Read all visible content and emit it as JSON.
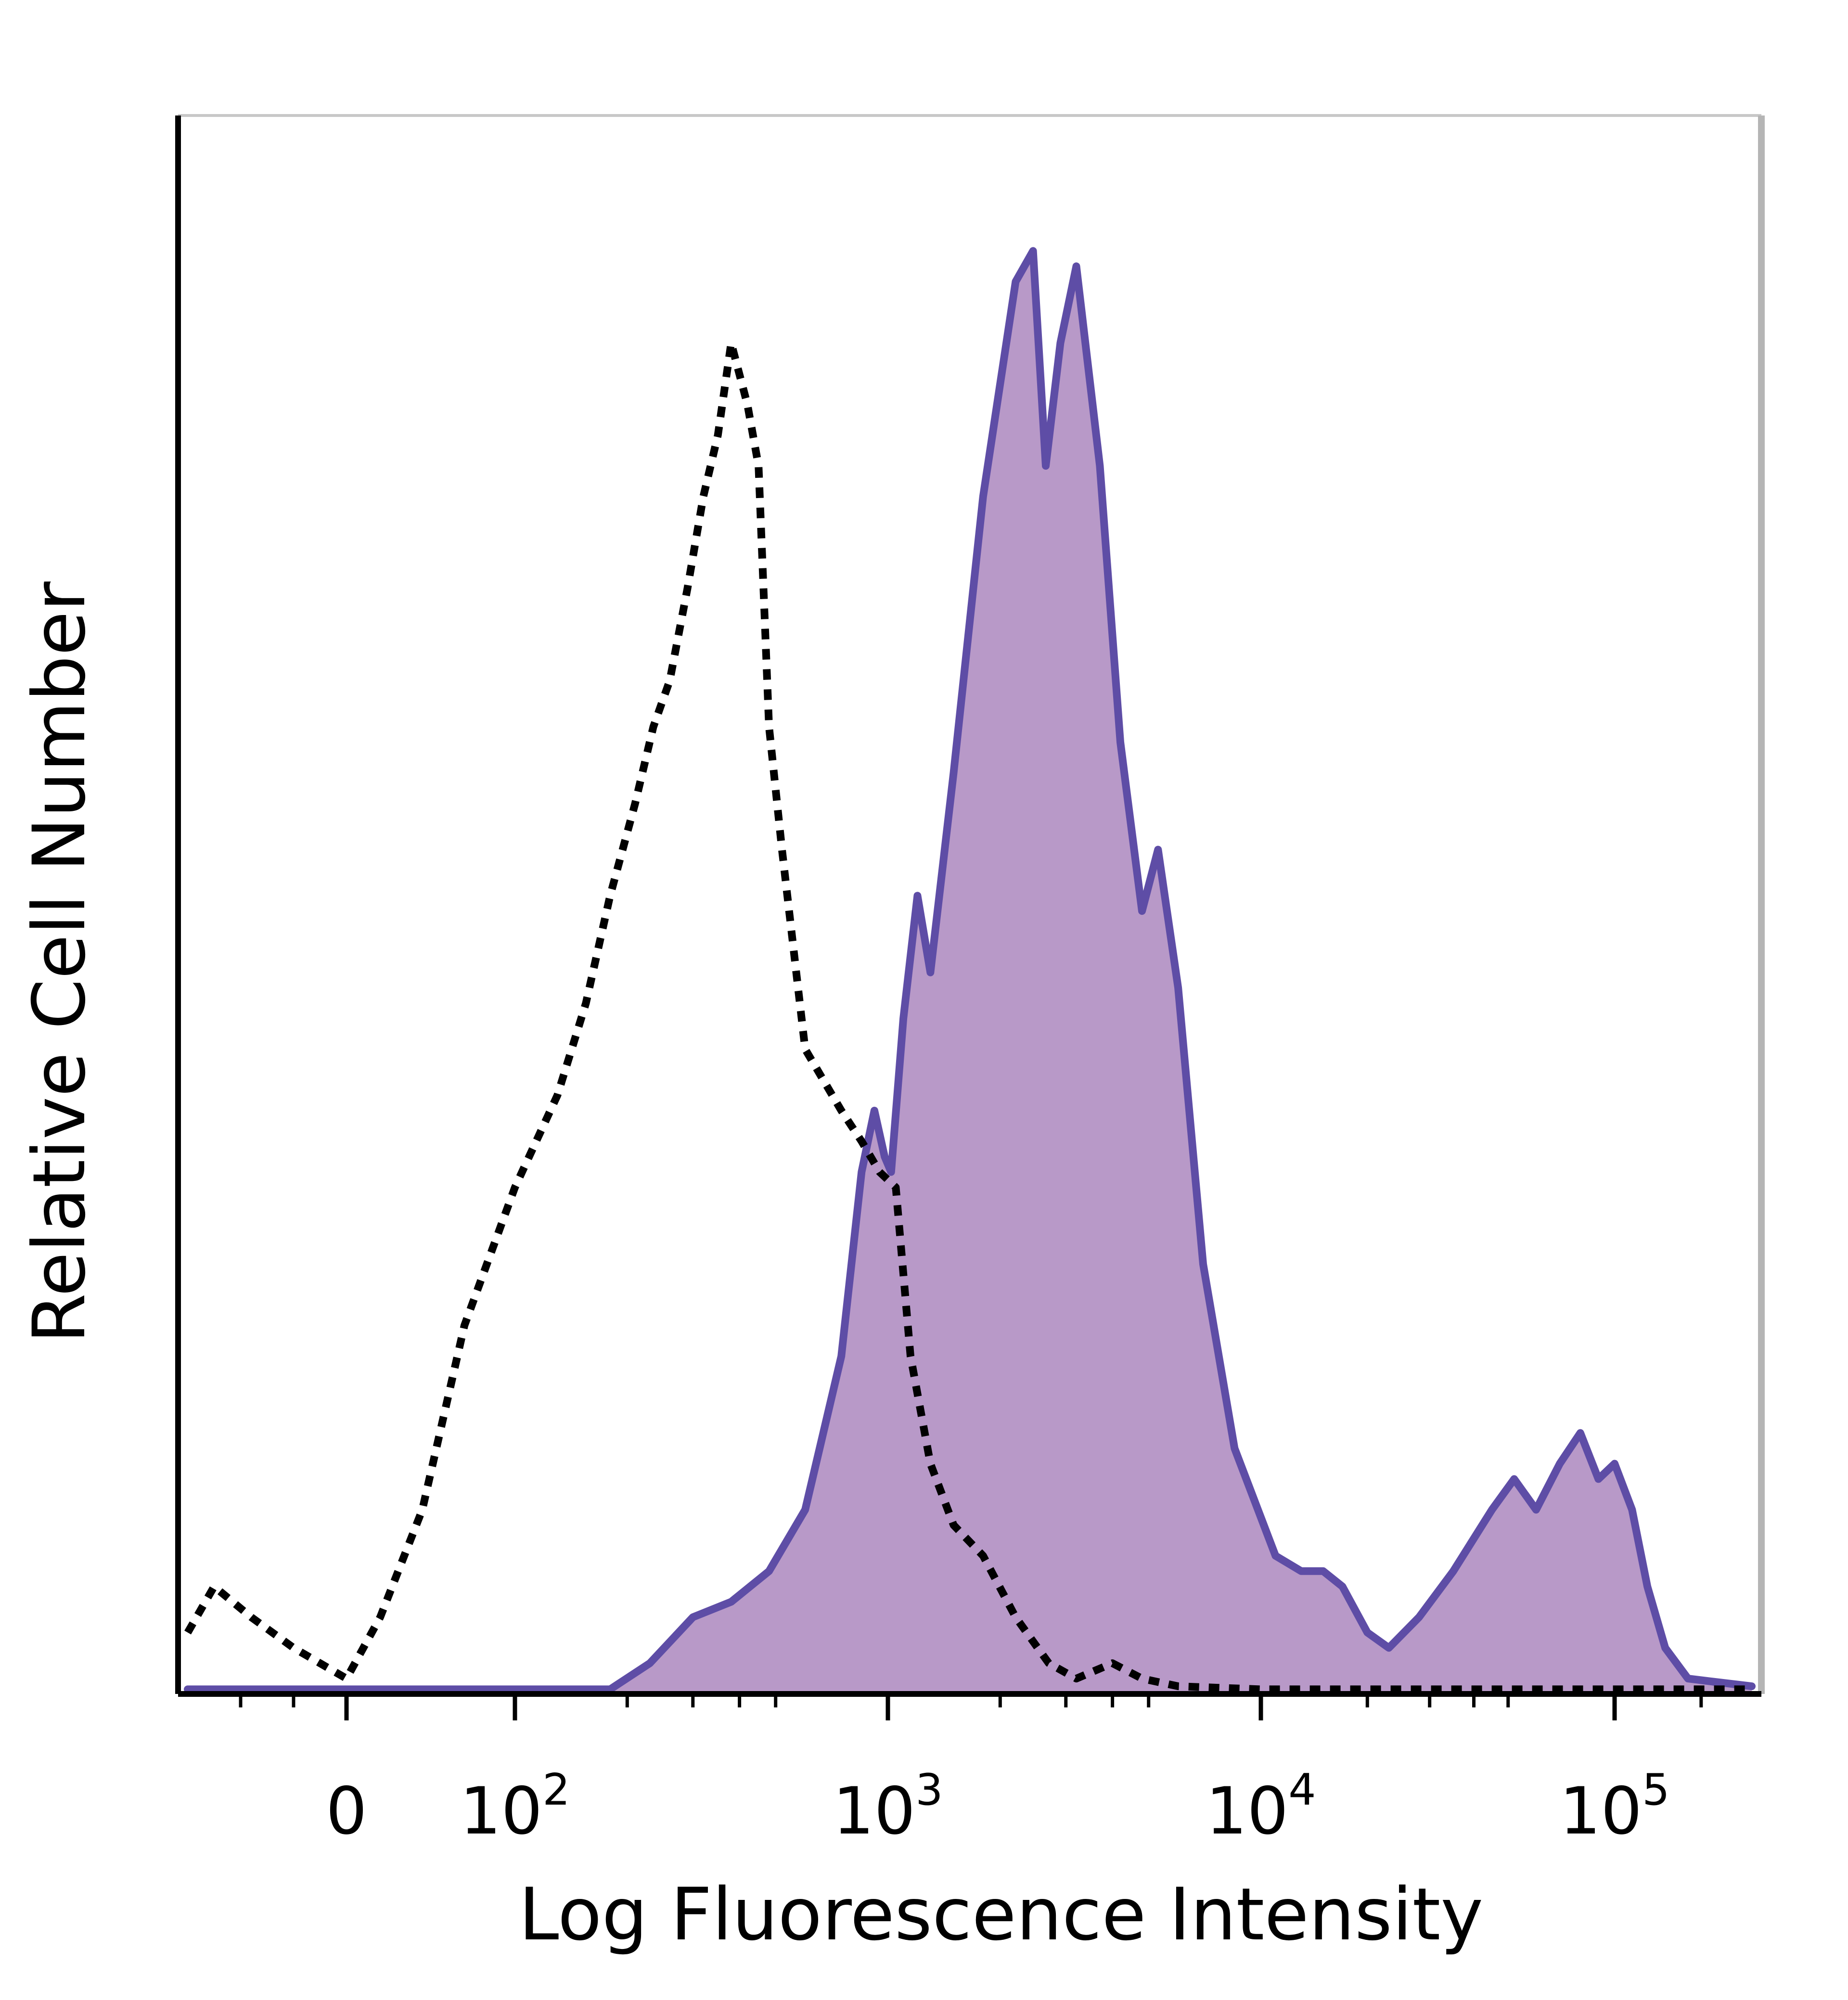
{
  "chart_data": {
    "type": "area",
    "title": "",
    "xlabel": "Log Fluorescence Intensity",
    "ylabel": "Relative Cell Number",
    "x_scale": "biexponential",
    "grid": false,
    "legend": "none",
    "x_ticks": [
      {
        "label": "0",
        "value": 0
      },
      {
        "label": "10",
        "exp": "2",
        "value": 100
      },
      {
        "label": "10",
        "exp": "3",
        "value": 1000
      },
      {
        "label": "10",
        "exp": "4",
        "value": 10000
      },
      {
        "label": "10",
        "exp": "5",
        "value": 100000
      }
    ],
    "ylim": [
      0,
      100
    ],
    "series": [
      {
        "style": "dotted",
        "color": "#000000",
        "fill": "none",
        "points": [
          [
            -300,
            4
          ],
          [
            -250,
            7
          ],
          [
            -180,
            5
          ],
          [
            -100,
            3
          ],
          [
            -50,
            2
          ],
          [
            0,
            1
          ],
          [
            20,
            5
          ],
          [
            45,
            12
          ],
          [
            70,
            24
          ],
          [
            100,
            33
          ],
          [
            130,
            39
          ],
          [
            155,
            45
          ],
          [
            180,
            52
          ],
          [
            210,
            58
          ],
          [
            235,
            63
          ],
          [
            260,
            66
          ],
          [
            290,
            72
          ],
          [
            320,
            78
          ],
          [
            350,
            82
          ],
          [
            380,
            88
          ],
          [
            420,
            84
          ],
          [
            450,
            80
          ],
          [
            480,
            63
          ],
          [
            520,
            55
          ],
          [
            600,
            42
          ],
          [
            750,
            38
          ],
          [
            850,
            36
          ],
          [
            950,
            34
          ],
          [
            1050,
            33
          ],
          [
            1150,
            22
          ],
          [
            1300,
            15
          ],
          [
            1500,
            11
          ],
          [
            1800,
            9
          ],
          [
            2200,
            5
          ],
          [
            2700,
            2
          ],
          [
            3200,
            1
          ],
          [
            4000,
            2
          ],
          [
            4800,
            1
          ],
          [
            6000,
            0.5
          ],
          [
            10000,
            0.3
          ],
          [
            300000,
            0.3
          ]
        ]
      },
      {
        "style": "filled",
        "color": "#5e4da6",
        "fill": "#b899c8",
        "points": [
          [
            -300,
            0.3
          ],
          [
            0,
            0.3
          ],
          [
            100,
            0.3
          ],
          [
            180,
            0.3
          ],
          [
            230,
            2
          ],
          [
            300,
            5
          ],
          [
            380,
            6
          ],
          [
            480,
            8
          ],
          [
            600,
            12
          ],
          [
            750,
            22
          ],
          [
            850,
            34
          ],
          [
            920,
            38
          ],
          [
            980,
            35
          ],
          [
            1020,
            34
          ],
          [
            1100,
            44
          ],
          [
            1200,
            52
          ],
          [
            1300,
            47
          ],
          [
            1500,
            60
          ],
          [
            1800,
            78
          ],
          [
            2200,
            92
          ],
          [
            2450,
            94
          ],
          [
            2650,
            80
          ],
          [
            2900,
            88
          ],
          [
            3200,
            93
          ],
          [
            3700,
            80
          ],
          [
            4200,
            62
          ],
          [
            4800,
            51
          ],
          [
            5300,
            55
          ],
          [
            6000,
            46
          ],
          [
            7000,
            28
          ],
          [
            8500,
            16
          ],
          [
            11000,
            9
          ],
          [
            13000,
            8
          ],
          [
            15000,
            8
          ],
          [
            17000,
            7
          ],
          [
            20000,
            4
          ],
          [
            23000,
            3
          ],
          [
            28000,
            5
          ],
          [
            35000,
            8
          ],
          [
            45000,
            12
          ],
          [
            52000,
            14
          ],
          [
            60000,
            12
          ],
          [
            70000,
            15
          ],
          [
            80000,
            17
          ],
          [
            90000,
            14
          ],
          [
            100000,
            15
          ],
          [
            115000,
            12
          ],
          [
            130000,
            7
          ],
          [
            150000,
            3
          ],
          [
            180000,
            1
          ],
          [
            220000,
            0.8
          ],
          [
            300000,
            0.5
          ]
        ]
      }
    ]
  }
}
